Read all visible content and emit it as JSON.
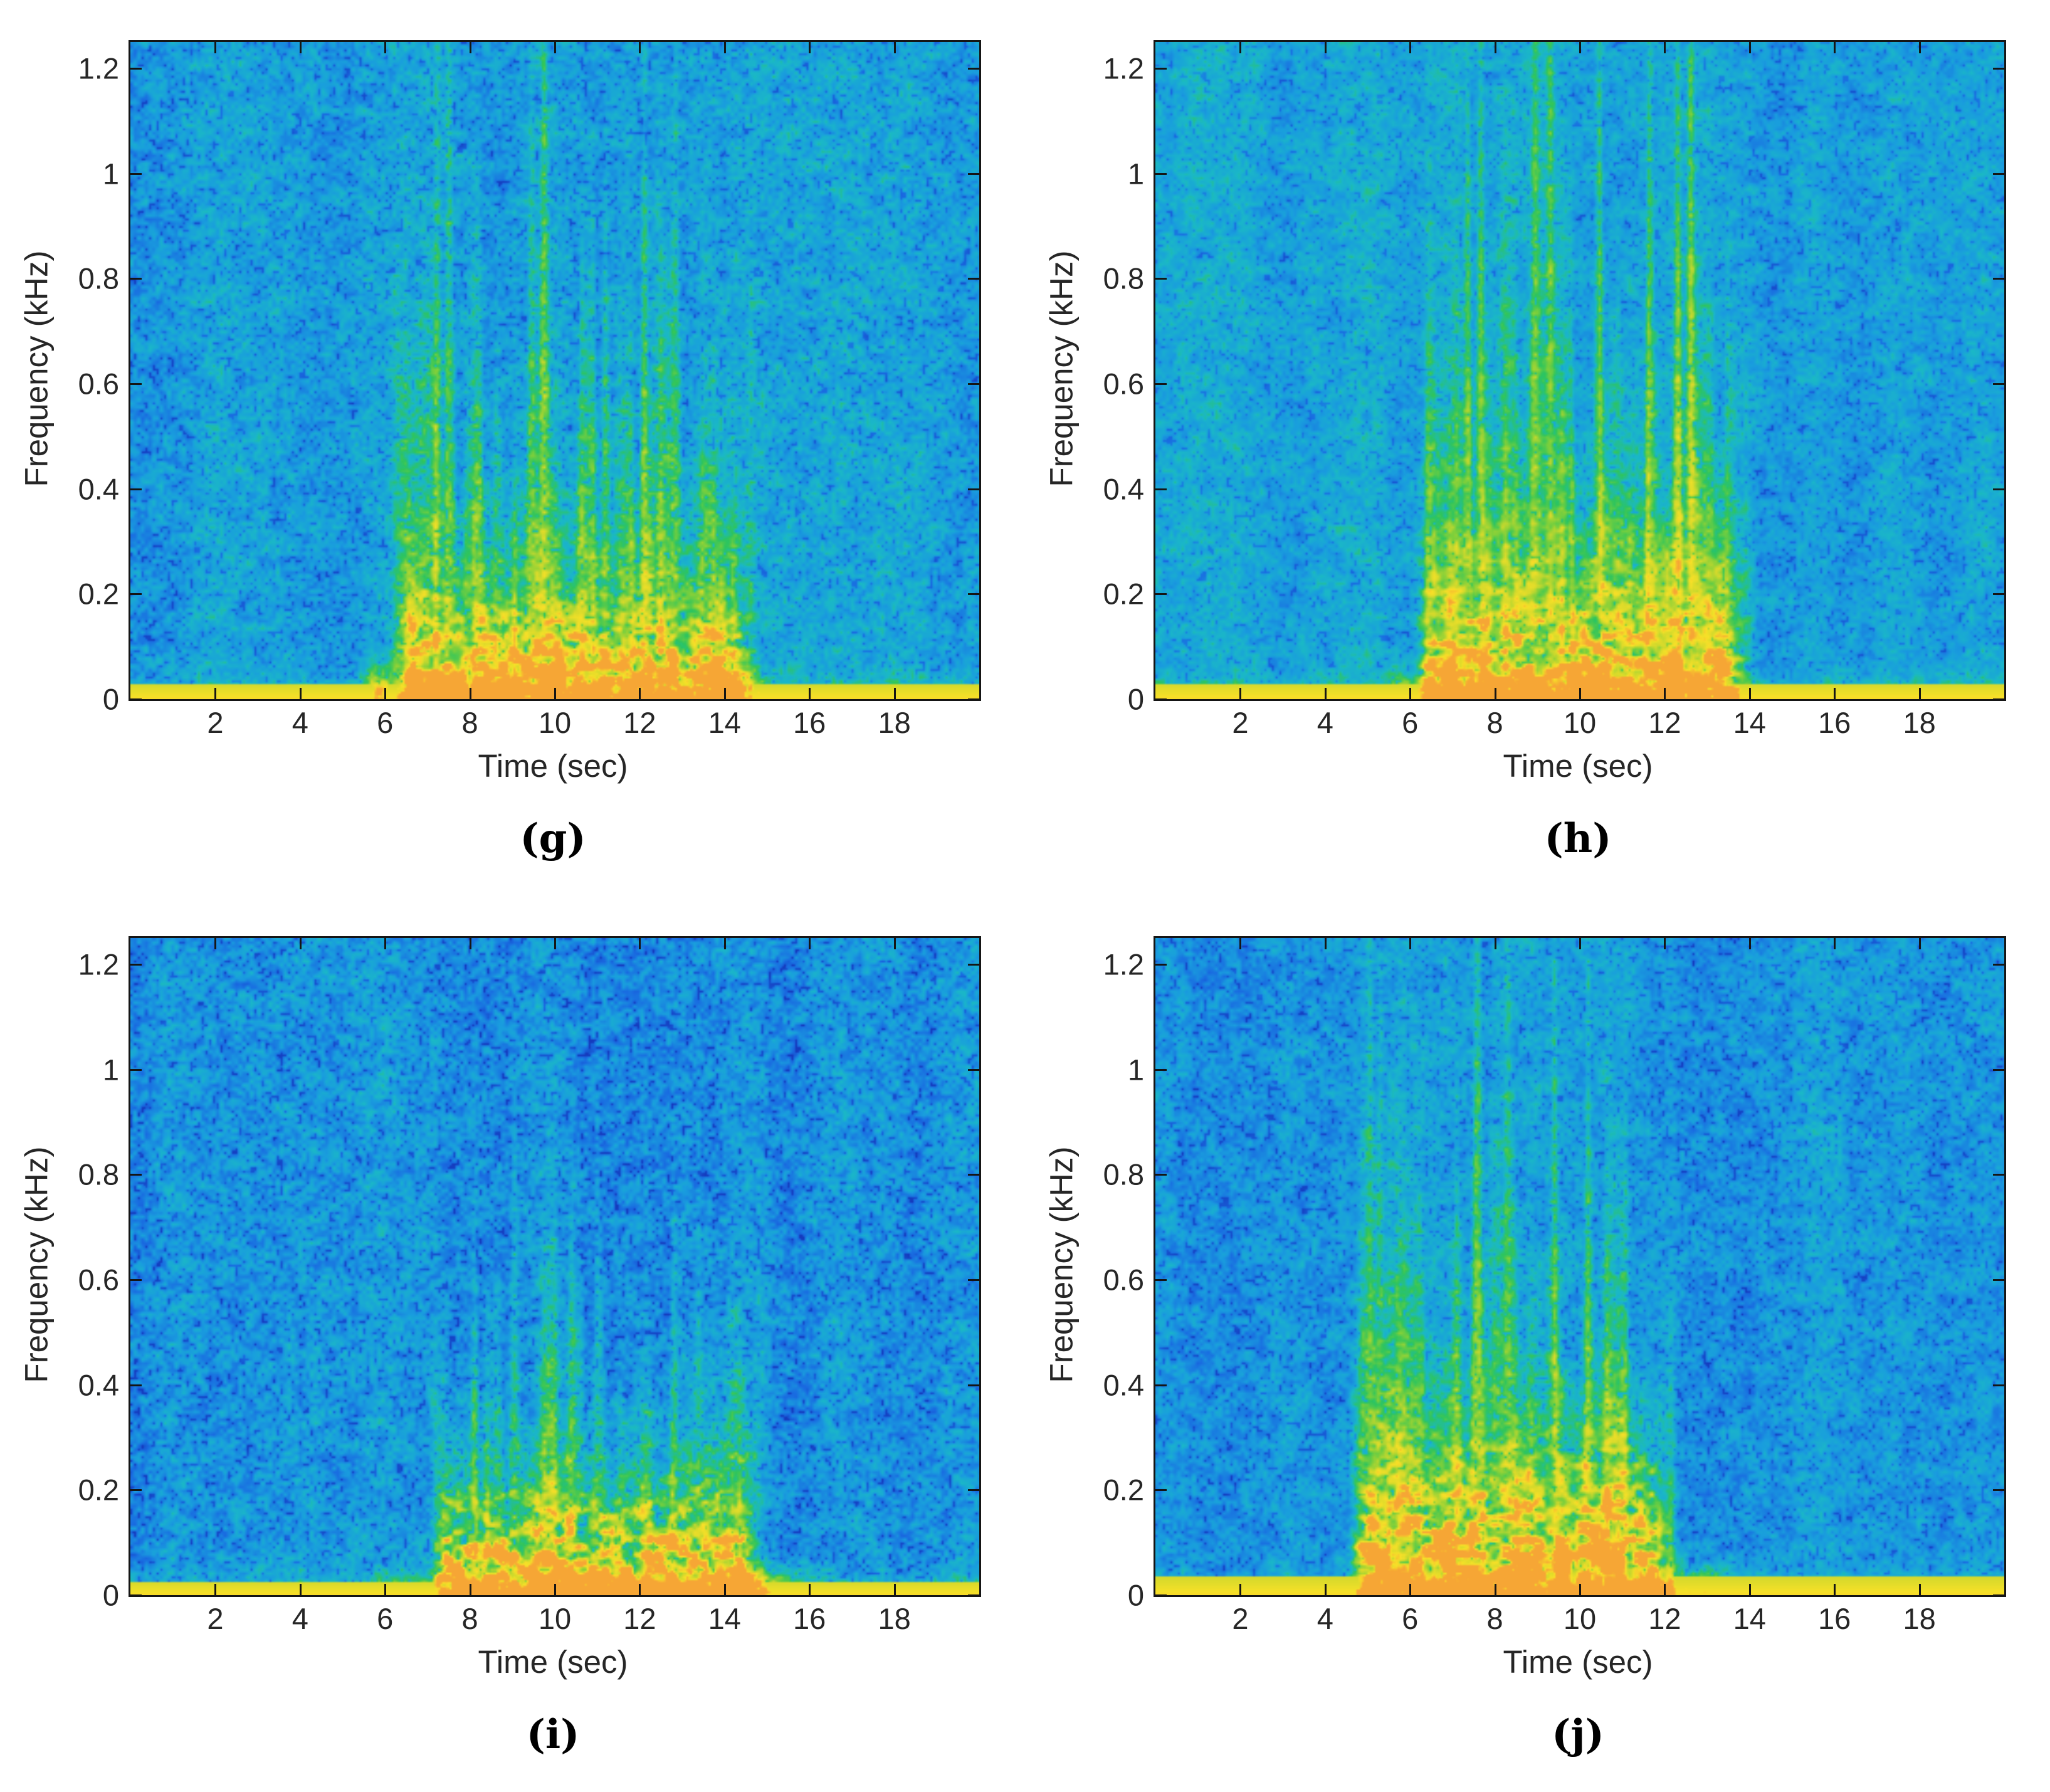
{
  "figure": {
    "background": "#ffffff",
    "layout": "2x2-spectrogram-grid"
  },
  "axis": {
    "xticks": [
      2,
      4,
      6,
      8,
      10,
      12,
      14,
      16,
      18
    ],
    "yticks": [
      {
        "v": 0,
        "t": "0"
      },
      {
        "v": 0.2,
        "t": "0.2"
      },
      {
        "v": 0.4,
        "t": "0.4"
      },
      {
        "v": 0.6,
        "t": "0.6"
      },
      {
        "v": 0.8,
        "t": "0.8"
      },
      {
        "v": 1,
        "t": "1"
      },
      {
        "v": 1.2,
        "t": "1.2"
      }
    ],
    "xlim": [
      0,
      20
    ],
    "ylim": [
      0,
      1.25
    ]
  },
  "colormap": {
    "name": "jet-like",
    "stops": [
      [
        0.0,
        21,
        59,
        190
      ],
      [
        0.14,
        26,
        108,
        226
      ],
      [
        0.3,
        25,
        158,
        222
      ],
      [
        0.44,
        27,
        185,
        199
      ],
      [
        0.56,
        46,
        197,
        94
      ],
      [
        0.68,
        126,
        208,
        60
      ],
      [
        0.8,
        213,
        218,
        44
      ],
      [
        0.9,
        248,
        225,
        40
      ],
      [
        1.0,
        246,
        164,
        54
      ]
    ],
    "accent_background": "#19b2d8",
    "accent_burst_green": "#2ec55e",
    "accent_baseline_yellow": "#f6e428",
    "accent_hotspot_orange": "#f2a836"
  },
  "chart_data": {
    "type": "heatmap",
    "subtype": "spectrogram",
    "grid": [
      "(g)",
      "(h)",
      "(i)",
      "(j)"
    ],
    "panels": [
      {
        "label": "(g)",
        "xlabel": "Time (sec)",
        "ylabel": "Frequency (kHz)",
        "xlim": [
          0,
          20
        ],
        "ylim": [
          0,
          1.25
        ],
        "burst_interval_sec": [
          6.7,
          13.9
        ],
        "green_extent_khz": 1.25,
        "orange_extent_khz": 0.3,
        "baseline_band_khz": 0.028,
        "render": {
          "seed": 101,
          "bg": 0.3,
          "speckle": 0.22,
          "rise": 0.8,
          "fall": 1.2,
          "green_h": 0.52,
          "orange_h": 0.16,
          "orange_amp": 0.55,
          "tall_amp": 1.0,
          "streak_times": [
            7.25,
            7.5,
            9.45,
            9.75,
            11.2,
            12.1,
            12.85
          ],
          "extras": [
            {
              "t": 5.85,
              "sigma": 0.3,
              "fh": 0.06,
              "amp": 0.5
            },
            {
              "t": 14.4,
              "sigma": 0.5,
              "fh": 0.05,
              "amp": 0.3
            }
          ]
        }
      },
      {
        "label": "(h)",
        "xlabel": "Time (sec)",
        "ylabel": "Frequency (kHz)",
        "xlim": [
          0,
          20
        ],
        "ylim": [
          0,
          1.25
        ],
        "burst_interval_sec": [
          6.6,
          13.3
        ],
        "green_extent_khz": 1.25,
        "orange_extent_khz": 0.35,
        "baseline_band_khz": 0.03,
        "render": {
          "seed": 202,
          "bg": 0.33,
          "speckle": 0.18,
          "rise": 0.6,
          "fall": 1.0,
          "green_h": 0.55,
          "orange_h": 0.2,
          "orange_amp": 0.52,
          "tall_amp": 1.35,
          "streak_times": [
            7.35,
            7.65,
            8.95,
            9.3,
            10.45,
            11.65,
            12.3,
            12.6
          ],
          "extras": [
            {
              "t": 5.8,
              "sigma": 0.3,
              "fh": 0.05,
              "amp": 0.35
            }
          ]
        }
      },
      {
        "label": "(i)",
        "xlabel": "Time (sec)",
        "ylabel": "Frequency (kHz)",
        "xlim": [
          0,
          20
        ],
        "ylim": [
          0,
          1.25
        ],
        "burst_interval_sec": [
          7.5,
          14.2
        ],
        "green_extent_khz": 0.85,
        "orange_extent_khz": 0.28,
        "baseline_band_khz": 0.026,
        "render": {
          "seed": 303,
          "bg": 0.26,
          "speckle": 0.24,
          "rise": 0.5,
          "fall": 1.0,
          "green_h": 0.42,
          "orange_h": 0.17,
          "orange_amp": 0.62,
          "tall_amp": 0.6,
          "streak_times": [
            8.1,
            9.0,
            10.6,
            11.0,
            12.8,
            13.4
          ],
          "extras": [
            {
              "t": 6.6,
              "sigma": 0.7,
              "fh": 0.045,
              "amp": 0.28
            },
            {
              "t": 15.0,
              "sigma": 0.9,
              "fh": 0.05,
              "amp": 0.45
            }
          ]
        }
      },
      {
        "label": "(j)",
        "xlabel": "Time (sec)",
        "ylabel": "Frequency (kHz)",
        "xlim": [
          0,
          20
        ],
        "ylim": [
          0,
          1.25
        ],
        "burst_interval_sec": [
          4.9,
          11.5
        ],
        "green_extent_khz": 1.1,
        "orange_extent_khz": 0.36,
        "baseline_band_khz": 0.034,
        "render": {
          "seed": 404,
          "bg": 0.29,
          "speckle": 0.2,
          "rise": 0.4,
          "fall": 0.9,
          "green_h": 0.55,
          "orange_h": 0.24,
          "orange_amp": 0.6,
          "tall_amp": 0.95,
          "streak_times": [
            5.05,
            5.3,
            7.6,
            8.3,
            9.4,
            10.2
          ],
          "extras": [
            {
              "t": 12.15,
              "sigma": 0.1,
              "fh": 0.6,
              "amp": 0.22
            },
            {
              "t": 12.7,
              "sigma": 0.8,
              "fh": 0.055,
              "amp": 0.42
            }
          ]
        }
      }
    ]
  }
}
